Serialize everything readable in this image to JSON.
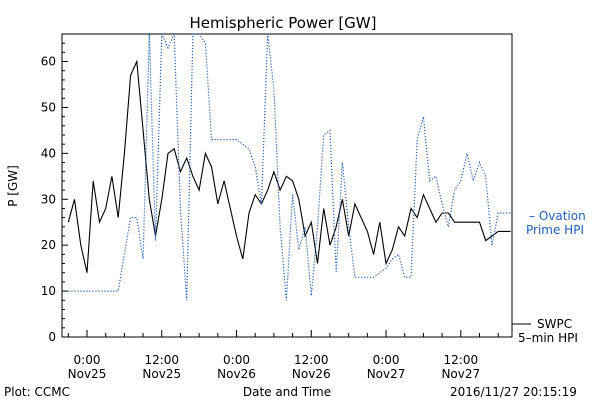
{
  "chart_data": {
    "type": "line",
    "title": "Hemispheric Power [GW]",
    "xlabel": "Date and Time",
    "ylabel": "P [GW]",
    "ylim": [
      0,
      66
    ],
    "xlim_hours_label": "0:00 Nov25 to Nov27 ~20:15",
    "y_ticks": [
      0,
      10,
      20,
      30,
      40,
      50,
      60
    ],
    "x_tick_labels": [
      {
        "time": "0:00",
        "day": "Nov25"
      },
      {
        "time": "12:00",
        "day": "Nov25"
      },
      {
        "time": "0:00",
        "day": "Nov26"
      },
      {
        "time": "12:00",
        "day": "Nov26"
      },
      {
        "time": "0:00",
        "day": "Nov27"
      },
      {
        "time": "12:00",
        "day": "Nov27"
      }
    ],
    "grid": false,
    "legend_placement": "right",
    "footer_left": "Plot: CCMC",
    "footer_right": "2016/11/27 20:15:19",
    "series": [
      {
        "name": "SWPC 5-min HPI",
        "legend_line1": "SWPC",
        "legend_line2": "5–min HPI",
        "color": "#000000",
        "style": "solid",
        "x": [
          "2016-11-24 21:00",
          "2016-11-24 22:00",
          "2016-11-24 23:00",
          "2016-11-25 00:00",
          "2016-11-25 01:00",
          "2016-11-25 02:00",
          "2016-11-25 03:00",
          "2016-11-25 04:00",
          "2016-11-25 05:00",
          "2016-11-25 06:00",
          "2016-11-25 07:00",
          "2016-11-25 08:00",
          "2016-11-25 09:00",
          "2016-11-25 10:00",
          "2016-11-25 11:00",
          "2016-11-25 12:00",
          "2016-11-25 13:00",
          "2016-11-25 14:00",
          "2016-11-25 15:00",
          "2016-11-25 16:00",
          "2016-11-25 17:00",
          "2016-11-25 18:00",
          "2016-11-25 19:00",
          "2016-11-25 20:00",
          "2016-11-25 21:00",
          "2016-11-25 22:00",
          "2016-11-26 00:00",
          "2016-11-26 01:00",
          "2016-11-26 02:00",
          "2016-11-26 03:00",
          "2016-11-26 04:00",
          "2016-11-26 05:00",
          "2016-11-26 06:00",
          "2016-11-26 07:00",
          "2016-11-26 08:00",
          "2016-11-26 09:00",
          "2016-11-26 10:00",
          "2016-11-26 11:00",
          "2016-11-26 12:00",
          "2016-11-26 13:00",
          "2016-11-26 14:00",
          "2016-11-26 15:00",
          "2016-11-26 16:00",
          "2016-11-26 17:00",
          "2016-11-26 18:00",
          "2016-11-26 19:00",
          "2016-11-26 20:00",
          "2016-11-26 21:00",
          "2016-11-26 22:00",
          "2016-11-26 23:00",
          "2016-11-27 00:00",
          "2016-11-27 01:00",
          "2016-11-27 02:00",
          "2016-11-27 03:00",
          "2016-11-27 04:00",
          "2016-11-27 05:00",
          "2016-11-27 06:00",
          "2016-11-27 07:00",
          "2016-11-27 08:00",
          "2016-11-27 09:00",
          "2016-11-27 10:00",
          "2016-11-27 11:00",
          "2016-11-27 12:00",
          "2016-11-27 13:00",
          "2016-11-27 14:00",
          "2016-11-27 15:00",
          "2016-11-27 16:00",
          "2016-11-27 17:00",
          "2016-11-27 18:00",
          "2016-11-27 19:00",
          "2016-11-27 20:00"
        ],
        "values": [
          25,
          30,
          20,
          14,
          34,
          25,
          28,
          35,
          26,
          40,
          57,
          60,
          45,
          30,
          22,
          30,
          40,
          41,
          36,
          39,
          35,
          32,
          40,
          37,
          29,
          34,
          22,
          17,
          27,
          31,
          29,
          32,
          36,
          32,
          35,
          34,
          30,
          22,
          25,
          16,
          28,
          20,
          24,
          30,
          22,
          29,
          26,
          23,
          18,
          25,
          16,
          19,
          24,
          22,
          28,
          26,
          31,
          28,
          25,
          27,
          27,
          25,
          25,
          25,
          25,
          25,
          21,
          22,
          23,
          23,
          23
        ]
      },
      {
        "name": "Ovation Prime HPI",
        "legend_line1": "– Ovation",
        "legend_line2": "Prime HPI",
        "color": "#1f5fbf",
        "style": "dotted",
        "x": [
          "2016-11-24 21:00",
          "2016-11-25 01:00",
          "2016-11-25 02:00",
          "2016-11-25 03:00",
          "2016-11-25 04:00",
          "2016-11-25 05:00",
          "2016-11-25 06:00",
          "2016-11-25 07:00",
          "2016-11-25 08:00",
          "2016-11-25 09:00",
          "2016-11-25 10:00",
          "2016-11-25 11:00",
          "2016-11-25 12:00",
          "2016-11-25 13:00",
          "2016-11-25 14:00",
          "2016-11-25 15:00",
          "2016-11-25 16:00",
          "2016-11-25 17:00",
          "2016-11-25 18:00",
          "2016-11-25 19:00",
          "2016-11-25 20:00",
          "2016-11-25 21:00",
          "2016-11-26 00:00",
          "2016-11-26 02:00",
          "2016-11-26 03:00",
          "2016-11-26 04:00",
          "2016-11-26 05:00",
          "2016-11-26 06:00",
          "2016-11-26 07:00",
          "2016-11-26 08:00",
          "2016-11-26 09:00",
          "2016-11-26 10:00",
          "2016-11-26 11:00",
          "2016-11-26 12:00",
          "2016-11-26 13:00",
          "2016-11-26 14:00",
          "2016-11-26 15:00",
          "2016-11-26 16:00",
          "2016-11-26 17:00",
          "2016-11-26 18:00",
          "2016-11-26 19:00",
          "2016-11-26 20:00",
          "2016-11-26 21:00",
          "2016-11-26 22:00",
          "2016-11-26 23:00",
          "2016-11-27 00:00",
          "2016-11-27 01:00",
          "2016-11-27 02:00",
          "2016-11-27 03:00",
          "2016-11-27 04:00",
          "2016-11-27 05:00",
          "2016-11-27 06:00",
          "2016-11-27 07:00",
          "2016-11-27 08:00",
          "2016-11-27 09:00",
          "2016-11-27 10:00",
          "2016-11-27 11:00",
          "2016-11-27 12:00",
          "2016-11-27 13:00",
          "2016-11-27 14:00",
          "2016-11-27 15:00",
          "2016-11-27 16:00",
          "2016-11-27 17:00",
          "2016-11-27 18:00",
          "2016-11-27 19:00",
          "2016-11-27 20:00"
        ],
        "values": [
          10,
          10,
          10,
          10,
          10,
          10,
          18,
          26,
          26,
          17,
          66,
          21,
          66,
          63,
          66,
          28,
          8,
          66,
          66,
          64,
          43,
          43,
          43,
          41,
          37,
          29,
          66,
          54,
          24,
          8,
          31,
          19,
          24,
          9,
          24,
          44,
          45,
          14,
          38,
          24,
          13,
          13,
          13,
          13,
          14,
          15,
          17,
          18,
          13,
          13,
          43,
          48,
          34,
          35,
          29,
          24,
          32,
          34,
          40,
          34,
          38,
          35,
          20,
          27,
          27,
          27
        ]
      }
    ]
  }
}
